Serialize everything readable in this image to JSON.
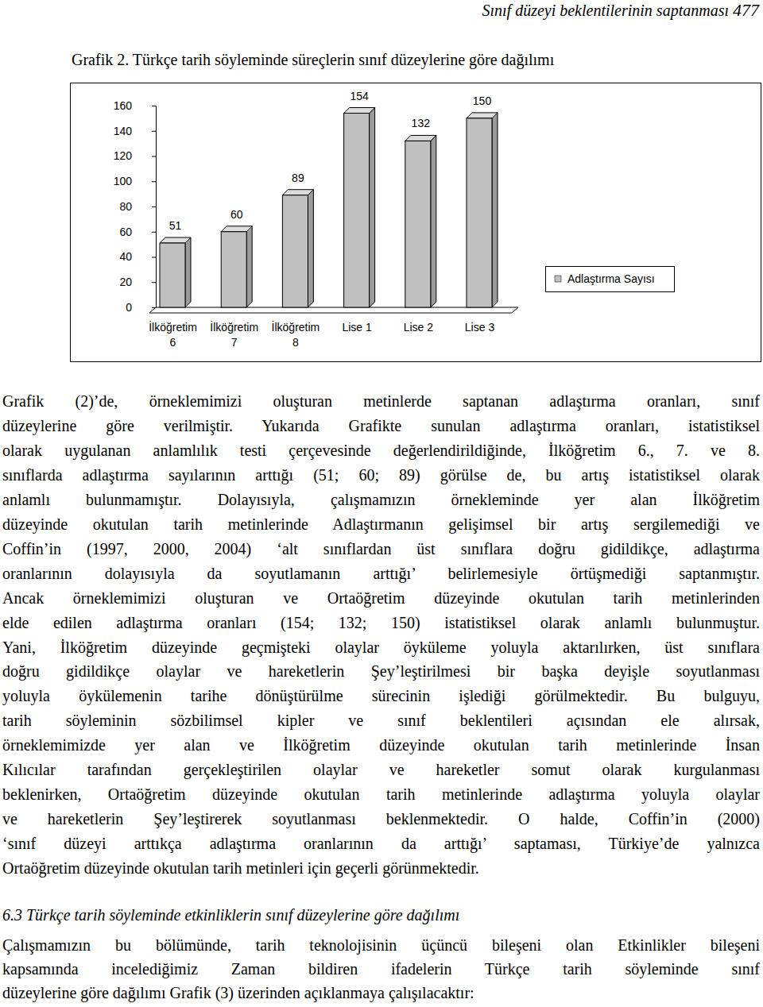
{
  "running_head": "Sınıf düzeyi beklentilerinin saptanması",
  "page_number": 477,
  "chart_data": {
    "type": "bar",
    "title": "Grafik 2. Türkçe tarih söyleminde süreçlerin sınıf düzeylerine göre dağılımı",
    "categories": [
      "İlköğretim 6",
      "İlköğretim 7",
      "İlköğretim 8",
      "Lise 1",
      "Lise 2",
      "Lise 3"
    ],
    "series": [
      {
        "name": "Adlaştırma Sayısı",
        "color": "#c0c0c0",
        "values": [
          51,
          60,
          89,
          154,
          132,
          150
        ]
      }
    ],
    "ylim": [
      0,
      160
    ],
    "yticks": [
      0,
      20,
      40,
      60,
      80,
      100,
      120,
      140,
      160
    ],
    "grid": false,
    "data_labels": true,
    "legend": "right"
  },
  "paragraph_1": {
    "lines": [
      "Grafik (2)’de, örneklemimizi oluşturan metinlerde saptanan adlaştırma oranları, sınıf",
      "düzeylerine göre verilmiştir. Yukarıda Grafikte sunulan adlaştırma oranları, istatistiksel",
      "olarak uygulanan anlamlılık testi çerçevesinde değerlendirildiğinde, İlköğretim 6., 7. ve 8.",
      "sınıflarda adlaştırma sayılarının arttığı (51; 60; 89) görülse de, bu artış istatistiksel olarak",
      "anlamlı bulunmamıştır. Dolayısıyla, çalışmamızın örnekleminde yer alan İlköğretim",
      "düzeyinde okutulan tarih metinlerinde Adlaştırmanın gelişimsel bir artış sergilemediği ve",
      "Coffin’in (1997, 2000, 2004) ‘alt sınıflardan üst sınıflara doğru gidildikçe, adlaştırma",
      "oranlarının dolayısıyla da soyutlamanın arttığı’ belirlemesiyle örtüşmediği saptanmıştır.",
      "Ancak örneklemimizi oluşturan ve Ortaöğretim düzeyinde okutulan tarih metinlerinden",
      "elde edilen adlaştırma oranları (154; 132; 150) istatistiksel olarak anlamlı bulunmuştur.",
      "Yani, İlköğretim düzeyinde geçmişteki olaylar öyküleme yoluyla aktarılırken, üst sınıflara",
      "doğru gidildikçe olaylar ve hareketlerin Şey’leştirilmesi bir başka deyişle soyutlanması",
      "yoluyla öykülemenin tarihe dönüştürülme sürecinin işlediği görülmektedir.  Bu bulguyu,",
      "tarih söyleminin sözbilimsel kipler ve sınıf beklentileri açısından ele alırsak,",
      "örneklemimizde yer alan ve İlköğretim düzeyinde okutulan tarih metinlerinde İnsan",
      "Kılıcılar tarafından gerçekleştirilen olaylar ve hareketler somut olarak kurgulanması",
      "beklenirken, Ortaöğretim düzeyinde okutulan tarih metinlerinde adlaştırma yoluyla olaylar",
      "ve hareketlerin Şey’leştirerek soyutlanması beklenmektedir. O halde, Coffin’in (2000)",
      "‘sınıf düzeyi arttıkça adlaştırma oranlarının da arttığı’ saptaması, Türkiye’de yalnızca",
      "Ortaöğretim düzeyinde okutulan tarih metinleri için geçerli görünmektedir."
    ]
  },
  "section_heading": "6.3 Türkçe tarih söyleminde etkinliklerin sınıf düzeylerine göre dağılımı",
  "paragraph_2": {
    "lines": [
      "Çalışmamızın bu bölümünde, tarih teknolojisinin üçüncü bileşeni olan Etkinlikler bileşeni",
      "kapsamında incelediğimiz Zaman bildiren ifadelerin Türkçe tarih söyleminde sınıf",
      "düzeylerine göre dağılımı Grafik (3) üzerinden açıklanmaya çalışılacaktır:"
    ]
  }
}
